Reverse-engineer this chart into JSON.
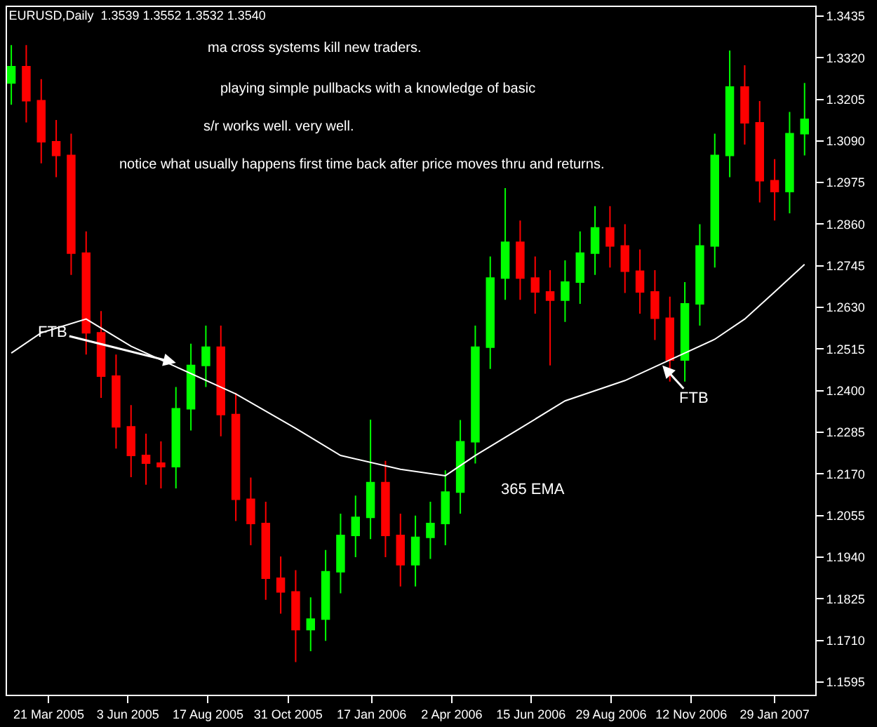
{
  "chart_data": {
    "type": "candlestick",
    "title": "EURUSD,Daily  1.3539 1.3552 1.3532 1.3540",
    "x": [
      "2005-02-14",
      "2005-02-28",
      "2005-03-14",
      "2005-03-28",
      "2005-04-11",
      "2005-04-25",
      "2005-05-09",
      "2005-05-23",
      "2005-06-06",
      "2005-06-20",
      "2005-07-04",
      "2005-07-18",
      "2005-08-01",
      "2005-08-15",
      "2005-08-29",
      "2005-09-12",
      "2005-09-26",
      "2005-10-10",
      "2005-10-24",
      "2005-11-07",
      "2005-11-21",
      "2005-12-05",
      "2005-12-19",
      "2006-01-02",
      "2006-01-16",
      "2006-01-30",
      "2006-02-13",
      "2006-02-27",
      "2006-03-13",
      "2006-03-27",
      "2006-04-10",
      "2006-04-24",
      "2006-05-08",
      "2006-05-22",
      "2006-06-05",
      "2006-06-19",
      "2006-07-03",
      "2006-07-17",
      "2006-07-31",
      "2006-08-14",
      "2006-08-28",
      "2006-09-11",
      "2006-09-25",
      "2006-10-09",
      "2006-10-23",
      "2006-11-06",
      "2006-11-20",
      "2006-12-04",
      "2006-12-18",
      "2007-01-01",
      "2007-01-15",
      "2007-01-29",
      "2007-02-12",
      "2007-02-26"
    ],
    "ohlc": [
      [
        1.325,
        1.3355,
        1.319,
        1.3295
      ],
      [
        1.3295,
        1.3355,
        1.3141,
        1.3201
      ],
      [
        1.3201,
        1.3261,
        1.3028,
        1.3088
      ],
      [
        1.3088,
        1.3148,
        1.299,
        1.305
      ],
      [
        1.305,
        1.311,
        1.272,
        1.278
      ],
      [
        1.278,
        1.284,
        1.25,
        1.256
      ],
      [
        1.256,
        1.262,
        1.238,
        1.244
      ],
      [
        1.244,
        1.25,
        1.224,
        1.23
      ],
      [
        1.23,
        1.236,
        1.2161,
        1.2221
      ],
      [
        1.2221,
        1.2281,
        1.214,
        1.22
      ],
      [
        1.22,
        1.226,
        1.213,
        1.219
      ],
      [
        1.219,
        1.241,
        1.213,
        1.235
      ],
      [
        1.235,
        1.253,
        1.229,
        1.247
      ],
      [
        1.247,
        1.258,
        1.241,
        1.252
      ],
      [
        1.252,
        1.258,
        1.2274,
        1.2334
      ],
      [
        1.2334,
        1.2394,
        1.204,
        1.21
      ],
      [
        1.21,
        1.216,
        1.1973,
        1.2033
      ],
      [
        1.2033,
        1.2093,
        1.1822,
        1.1882
      ],
      [
        1.1882,
        1.1942,
        1.1784,
        1.1844
      ],
      [
        1.1844,
        1.1904,
        1.165,
        1.174
      ],
      [
        1.174,
        1.1829,
        1.168,
        1.1769
      ],
      [
        1.1769,
        1.196,
        1.1709,
        1.19
      ],
      [
        1.19,
        1.206,
        1.184,
        1.2
      ],
      [
        1.2,
        1.211,
        1.194,
        1.205
      ],
      [
        1.205,
        1.232,
        1.199,
        1.2146
      ],
      [
        1.2146,
        1.2206,
        1.194,
        1.2
      ],
      [
        1.2,
        1.206,
        1.1859,
        1.1919
      ],
      [
        1.1919,
        1.2055,
        1.1859,
        1.1995
      ],
      [
        1.1995,
        1.2093,
        1.1935,
        1.2033
      ],
      [
        1.2033,
        1.218,
        1.1973,
        1.212
      ],
      [
        1.212,
        1.2319,
        1.206,
        1.2259
      ],
      [
        1.2259,
        1.258,
        1.2199,
        1.252
      ],
      [
        1.252,
        1.2771,
        1.246,
        1.2711
      ],
      [
        1.2711,
        1.296,
        1.2651,
        1.281
      ],
      [
        1.281,
        1.287,
        1.2651,
        1.2711
      ],
      [
        1.2711,
        1.2771,
        1.2613,
        1.2673
      ],
      [
        1.2673,
        1.2733,
        1.247,
        1.265
      ],
      [
        1.265,
        1.276,
        1.259,
        1.27
      ],
      [
        1.27,
        1.284,
        1.264,
        1.278
      ],
      [
        1.278,
        1.291,
        1.272,
        1.285
      ],
      [
        1.285,
        1.291,
        1.274,
        1.28
      ],
      [
        1.28,
        1.286,
        1.267,
        1.273
      ],
      [
        1.273,
        1.279,
        1.2613,
        1.2673
      ],
      [
        1.2673,
        1.2733,
        1.254,
        1.26
      ],
      [
        1.26,
        1.266,
        1.2425,
        1.2485
      ],
      [
        1.2485,
        1.27,
        1.2425,
        1.264
      ],
      [
        1.264,
        1.286,
        1.258,
        1.28
      ],
      [
        1.28,
        1.311,
        1.274,
        1.305
      ],
      [
        1.305,
        1.334,
        1.299,
        1.3239
      ],
      [
        1.3239,
        1.3299,
        1.308,
        1.314
      ],
      [
        1.314,
        1.32,
        1.292,
        1.298
      ],
      [
        1.298,
        1.304,
        1.287,
        1.295
      ],
      [
        1.295,
        1.317,
        1.289,
        1.311
      ],
      [
        1.311,
        1.325,
        1.305,
        1.315
      ]
    ],
    "colors": [
      "#00ff00",
      "#ff0000",
      "#ff0000",
      "#ff0000",
      "#ff0000",
      "#ff0000",
      "#ff0000",
      "#ff0000",
      "#ff0000",
      "#ff0000",
      "#ff0000",
      "#00ff00",
      "#00ff00",
      "#00ff00",
      "#ff0000",
      "#ff0000",
      "#ff0000",
      "#ff0000",
      "#ff0000",
      "#ff0000",
      "#00ff00",
      "#00ff00",
      "#00ff00",
      "#00ff00",
      "#00ff00",
      "#ff0000",
      "#ff0000",
      "#00ff00",
      "#00ff00",
      "#00ff00",
      "#00ff00",
      "#00ff00",
      "#00ff00",
      "#00ff00",
      "#ff0000",
      "#ff0000",
      "#ff0000",
      "#00ff00",
      "#00ff00",
      "#00ff00",
      "#ff0000",
      "#ff0000",
      "#ff0000",
      "#ff0000",
      "#ff0000",
      "#00ff00",
      "#00ff00",
      "#00ff00",
      "#00ff00",
      "#ff0000",
      "#ff0000",
      "#ff0000",
      "#00ff00",
      "#00ff00"
    ],
    "series": [
      {
        "type": "line",
        "name": "365 EMA",
        "color": "#ffffff",
        "x": [
          "2005-02-14",
          "2005-03-14",
          "2005-04-25",
          "2005-06-06",
          "2005-07-18",
          "2005-09-12",
          "2005-11-07",
          "2005-12-19",
          "2006-02-13",
          "2006-03-27",
          "2006-04-24",
          "2006-06-05",
          "2006-07-17",
          "2006-09-11",
          "2006-10-23",
          "2006-12-04",
          "2007-01-01",
          "2007-01-29",
          "2007-02-26"
        ],
        "values": [
          1.2504,
          1.256,
          1.2598,
          1.2523,
          1.2466,
          1.2391,
          1.2296,
          1.2221,
          1.2183,
          1.2165,
          1.2221,
          1.2296,
          1.2372,
          1.2428,
          1.2485,
          1.2542,
          1.2598,
          1.2673,
          1.2749
        ]
      }
    ],
    "annotations": [
      "ma cross systems kill new traders.",
      "playing simple pullbacks with a knowledge of basic",
      "s/r works well. very well.",
      "notice what usually happens first time back after price moves thru and returns.",
      {
        "text": "FTB",
        "x": "2005-07-18",
        "y": 1.2477
      },
      {
        "text": "FTB",
        "x": "2006-10-16",
        "y": 1.247
      }
    ],
    "xlim": [
      "2005-02-10",
      "2007-03-08"
    ],
    "xticks": [
      {
        "value": "2005-03-21",
        "label": "21 Mar 2005"
      },
      {
        "value": "2005-06-03",
        "label": "3 Jun 2005"
      },
      {
        "value": "2005-08-17",
        "label": "17 Aug 2005"
      },
      {
        "value": "2005-10-31",
        "label": "31 Oct 2005"
      },
      {
        "value": "2006-01-17",
        "label": "17 Jan 2006"
      },
      {
        "value": "2006-04-02",
        "label": "2 Apr 2006"
      },
      {
        "value": "2006-06-15",
        "label": "15 Jun 2006"
      },
      {
        "value": "2006-08-29",
        "label": "29 Aug 2006"
      },
      {
        "value": "2006-11-12",
        "label": "12 Nov 2006"
      },
      {
        "value": "2007-01-29",
        "label": "29 Jan 2007"
      }
    ],
    "ylim": [
      1.156,
      1.346
    ],
    "yticks": [
      {
        "value": 1.1595,
        "label": "1.1595"
      },
      {
        "value": 1.171,
        "label": "1.1710"
      },
      {
        "value": 1.1825,
        "label": "1.1825"
      },
      {
        "value": 1.194,
        "label": "1.1940"
      },
      {
        "value": 1.2055,
        "label": "1.2055"
      },
      {
        "value": 1.217,
        "label": "1.2170"
      },
      {
        "value": 1.2285,
        "label": "1.2285"
      },
      {
        "value": 1.24,
        "label": "1.2400"
      },
      {
        "value": 1.2515,
        "label": "1.2515"
      },
      {
        "value": 1.263,
        "label": "1.2630"
      },
      {
        "value": 1.2745,
        "label": "1.2745"
      },
      {
        "value": 1.286,
        "label": "1.2860"
      },
      {
        "value": 1.2975,
        "label": "1.2975"
      },
      {
        "value": 1.309,
        "label": "1.3090"
      },
      {
        "value": 1.3205,
        "label": "1.3205"
      },
      {
        "value": 1.332,
        "label": "1.3320"
      },
      {
        "value": 1.3435,
        "label": "1.3435"
      }
    ],
    "grid": false,
    "legend": false
  }
}
